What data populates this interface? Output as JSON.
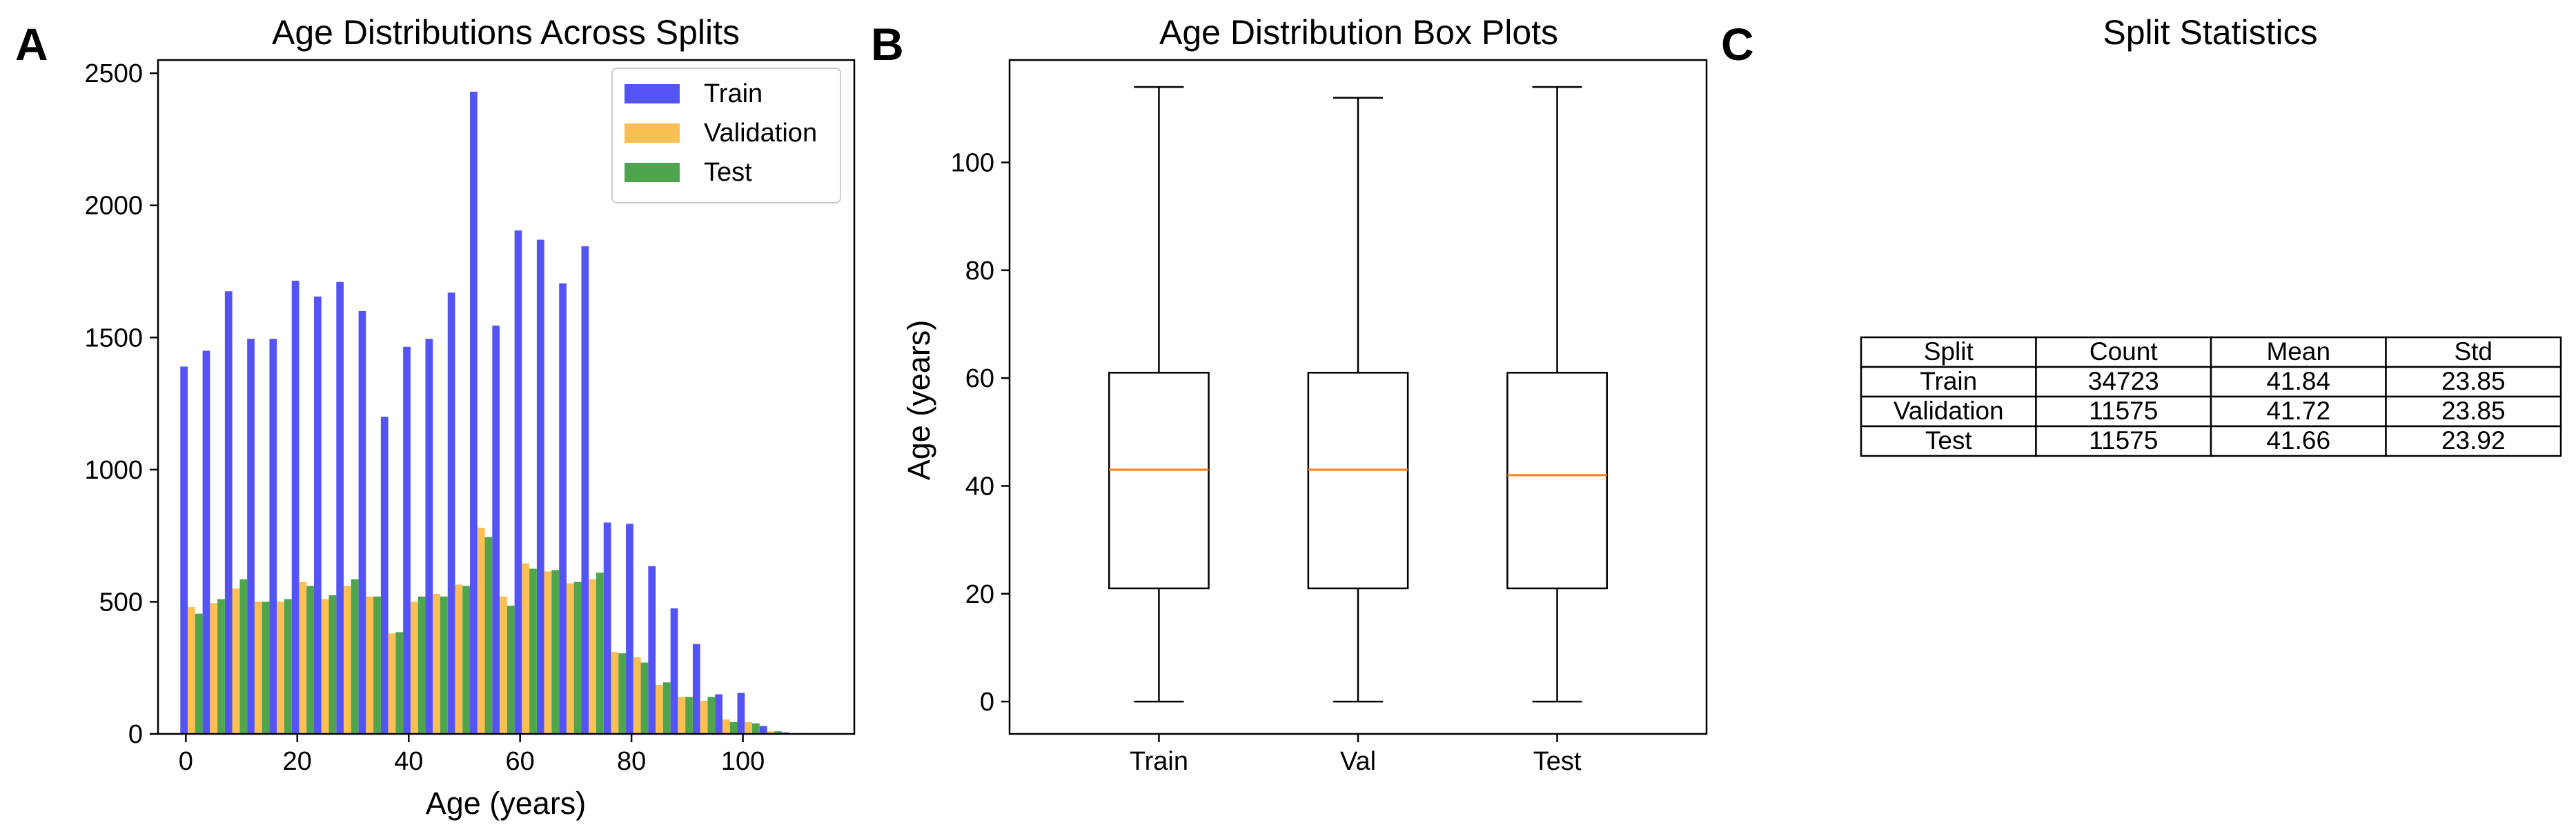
{
  "panels": {
    "a": "A",
    "b": "B",
    "c": "C"
  },
  "chart_data": [
    {
      "type": "bar",
      "title": "Age Distributions Across Splits",
      "xlabel": "Age (years)",
      "ylabel": "",
      "xlim": [
        -5,
        120
      ],
      "ylim": [
        0,
        2550
      ],
      "xticks": [
        0,
        20,
        40,
        60,
        80,
        100
      ],
      "yticks": [
        0,
        500,
        1000,
        1500,
        2000,
        2500
      ],
      "legend_position": "top-right",
      "x": [
        1,
        5,
        9,
        13,
        17,
        21,
        25,
        29,
        33,
        37,
        41,
        45,
        49,
        53,
        57,
        61,
        65,
        69,
        73,
        77,
        81,
        85,
        89,
        93,
        97,
        101,
        105,
        109,
        113
      ],
      "series": [
        {
          "name": "Train",
          "color": "#4b4bf5",
          "values": [
            1390,
            1450,
            1675,
            1495,
            1495,
            1715,
            1655,
            1710,
            1600,
            1200,
            1465,
            1495,
            1670,
            2430,
            1545,
            1905,
            1870,
            1705,
            1845,
            800,
            795,
            635,
            475,
            340,
            150,
            155,
            30,
            6,
            3
          ]
        },
        {
          "name": "Validation",
          "color": "#fbbc4a",
          "values": [
            480,
            495,
            550,
            500,
            500,
            575,
            510,
            560,
            520,
            380,
            500,
            530,
            565,
            780,
            520,
            645,
            615,
            570,
            585,
            310,
            290,
            185,
            140,
            125,
            55,
            45,
            10,
            2,
            1
          ]
        },
        {
          "name": "Test",
          "color": "#44a044",
          "values": [
            455,
            510,
            585,
            500,
            510,
            560,
            525,
            585,
            520,
            385,
            520,
            520,
            560,
            745,
            485,
            625,
            620,
            575,
            610,
            305,
            270,
            195,
            140,
            140,
            45,
            40,
            10,
            2,
            1
          ]
        }
      ]
    },
    {
      "type": "box",
      "title": "Age Distribution Box Plots",
      "xlabel": "",
      "ylabel": "Age (years)",
      "ylim": [
        -6,
        119
      ],
      "yticks": [
        0,
        20,
        40,
        60,
        80,
        100
      ],
      "median_color": "#ff7f0e",
      "boxes": [
        {
          "label": "Train",
          "min": 0,
          "q1": 21,
          "median": 43,
          "q3": 61,
          "max": 114
        },
        {
          "label": "Val",
          "min": 0,
          "q1": 21,
          "median": 43,
          "q3": 61,
          "max": 112
        },
        {
          "label": "Test",
          "min": 0,
          "q1": 21,
          "median": 42,
          "q3": 61,
          "max": 114
        }
      ]
    },
    {
      "type": "table",
      "title": "Split Statistics",
      "columns": [
        "Split",
        "Count",
        "Mean",
        "Std"
      ],
      "rows": [
        [
          "Train",
          "34723",
          "41.84",
          "23.85"
        ],
        [
          "Validation",
          "11575",
          "41.72",
          "23.85"
        ],
        [
          "Test",
          "11575",
          "41.66",
          "23.92"
        ]
      ]
    }
  ]
}
